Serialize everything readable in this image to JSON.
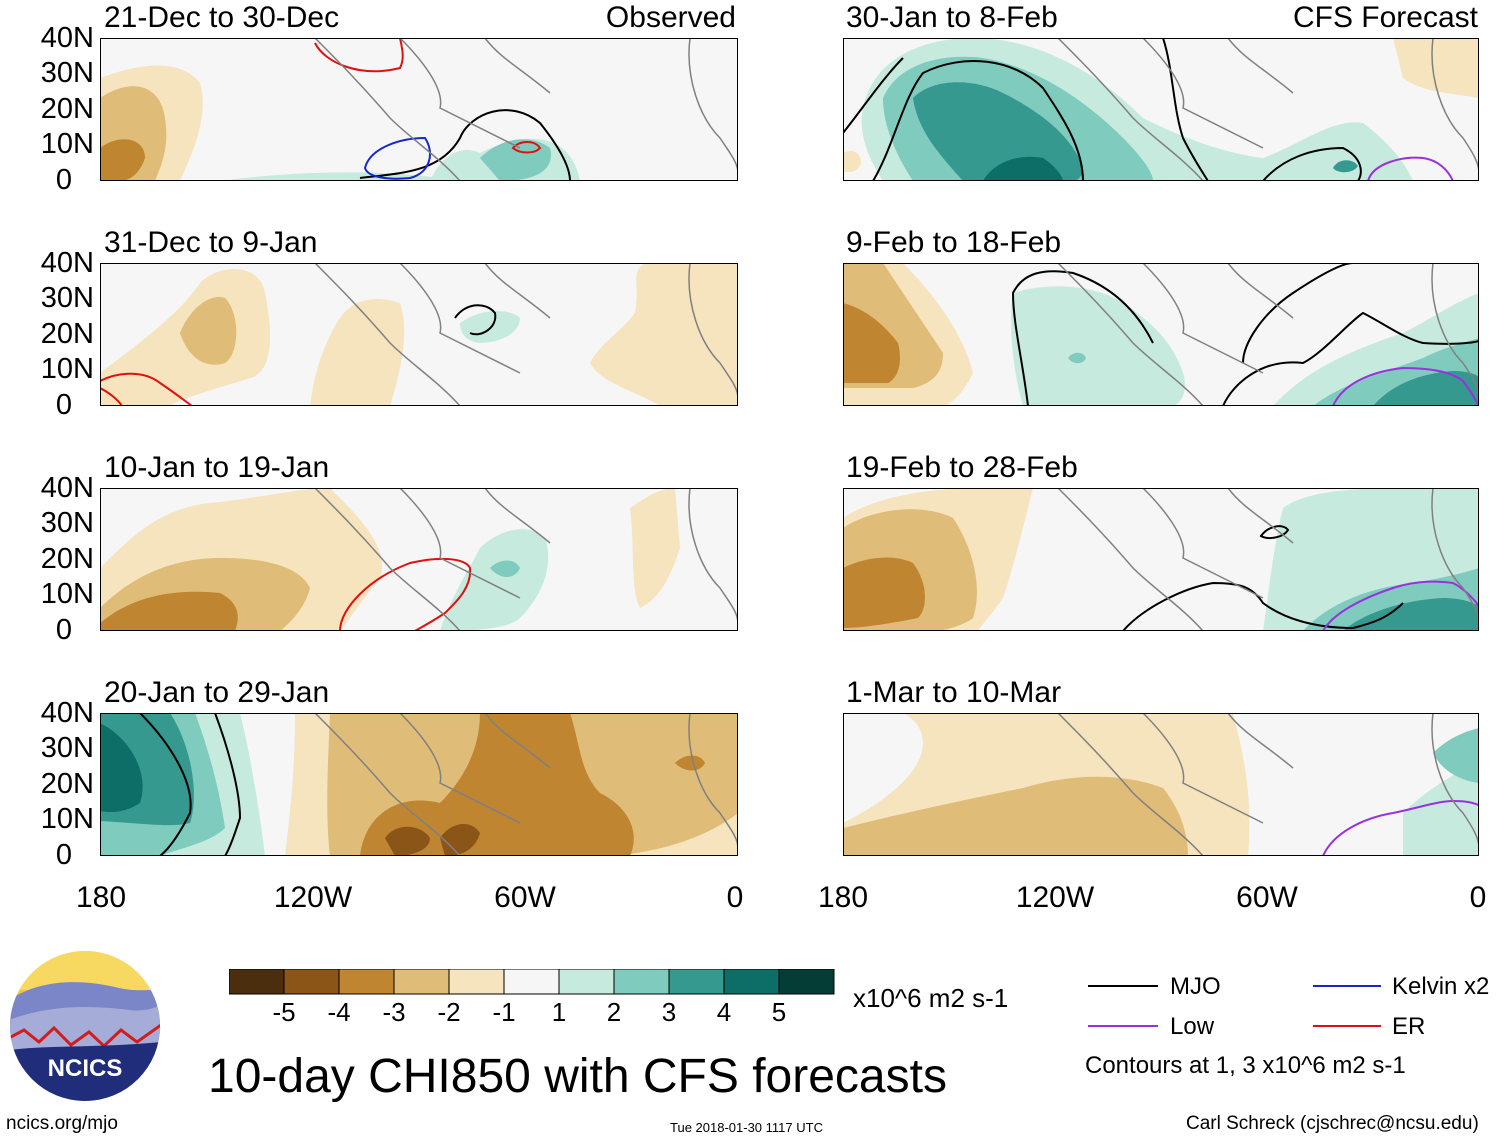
{
  "colors": {
    "brown5": "#4a2e0e",
    "brown4": "#8a5516",
    "brown3": "#bf8530",
    "brown2": "#dfbc77",
    "brown1": "#f5e4bd",
    "neutral": "#f6f6f6",
    "green1": "#c7eadf",
    "green2": "#7fcbbd",
    "green3": "#35998f",
    "green4": "#0d6e68",
    "green5": "#033d35",
    "mjo": "#000000",
    "low": "#9b30e0",
    "kelvin": "#1428cc",
    "er": "#e01010"
  },
  "axes": {
    "y_ticks": [
      "40N",
      "30N",
      "20N",
      "10N",
      "0"
    ],
    "x_ticks": [
      "180",
      "120W",
      "60W",
      "0"
    ]
  },
  "panels": [
    {
      "id": "p1",
      "title": "21-Dec to 30-Dec",
      "label": "Observed"
    },
    {
      "id": "p2",
      "title": "31-Dec to 9-Jan",
      "label": ""
    },
    {
      "id": "p3",
      "title": "10-Jan to 19-Jan",
      "label": ""
    },
    {
      "id": "p4",
      "title": "20-Jan to 29-Jan",
      "label": ""
    },
    {
      "id": "p5",
      "title": "30-Jan to 8-Feb",
      "label": "CFS Forecast"
    },
    {
      "id": "p6",
      "title": "9-Feb to 18-Feb",
      "label": ""
    },
    {
      "id": "p7",
      "title": "19-Feb to 28-Feb",
      "label": ""
    },
    {
      "id": "p8",
      "title": "1-Mar to 10-Mar",
      "label": ""
    }
  ],
  "colorbar": {
    "labels": [
      "-5",
      "-4",
      "-3",
      "-2",
      "-1",
      "1",
      "2",
      "3",
      "4",
      "5"
    ],
    "units": "x10^6 m2 s-1"
  },
  "legend": {
    "items": [
      {
        "name": "MJO",
        "color": "#000000"
      },
      {
        "name": "Kelvin x2",
        "color": "#1428cc"
      },
      {
        "name": "Low",
        "color": "#9b30e0"
      },
      {
        "name": "ER",
        "color": "#e01010"
      }
    ],
    "note": "Contours at 1, 3 x10^6 m2 s-1"
  },
  "logo_text": "NCICS",
  "main_title": "10-day CHI850 with CFS forecasts",
  "footer": {
    "url": "ncics.org/mjo",
    "timestamp": "Tue 2018-01-30 1117 UTC",
    "credit": "Carl Schreck (cjschrec@ncsu.edu)"
  }
}
